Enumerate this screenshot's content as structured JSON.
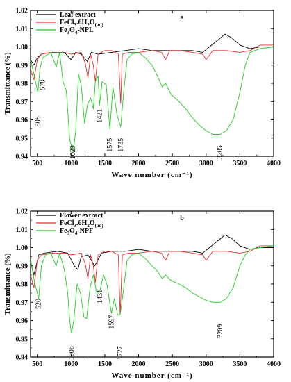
{
  "chart_data": [
    {
      "type": "line",
      "panel_label": "a",
      "xlabel": "Wave number (cm⁻¹)",
      "ylabel": "Transmittance (%)",
      "xlim": [
        400,
        4000
      ],
      "ylim": [
        0.94,
        1.02
      ],
      "xticks": [
        "500",
        "1000",
        "1500",
        "2000",
        "2500",
        "3000",
        "3500",
        "4000"
      ],
      "yticks": [
        "0.94",
        "0.95",
        "0.96",
        "0.97",
        "0.98",
        "0.99",
        "1.00",
        "1.01",
        "1.02"
      ],
      "legend_position": "top-left",
      "annotations": [
        {
          "label": "508",
          "x": 508,
          "y": 0.962
        },
        {
          "label": "578",
          "x": 578,
          "y": 0.982
        },
        {
          "label": "1029",
          "x": 1029,
          "y": 0.946
        },
        {
          "label": "1421",
          "x": 1421,
          "y": 0.966
        },
        {
          "label": "1575",
          "x": 1575,
          "y": 0.95
        },
        {
          "label": "1735",
          "x": 1735,
          "y": 0.95
        },
        {
          "label": "3205",
          "x": 3205,
          "y": 0.946
        }
      ],
      "series": [
        {
          "name": "Leaf extract",
          "color": "#000000",
          "points": [
            [
              400,
              0.993
            ],
            [
              450,
              0.99
            ],
            [
              500,
              0.994
            ],
            [
              560,
              0.996
            ],
            [
              700,
              0.997
            ],
            [
              900,
              0.997
            ],
            [
              1000,
              0.993
            ],
            [
              1070,
              0.997
            ],
            [
              1150,
              0.996
            ],
            [
              1240,
              0.992
            ],
            [
              1300,
              0.997
            ],
            [
              1400,
              0.996
            ],
            [
              1600,
              0.997
            ],
            [
              1800,
              0.998
            ],
            [
              2000,
              0.999
            ],
            [
              2200,
              0.998
            ],
            [
              2500,
              0.998
            ],
            [
              2800,
              0.998
            ],
            [
              2950,
              0.997
            ],
            [
              3050,
              1.0
            ],
            [
              3150,
              1.003
            ],
            [
              3280,
              1.007
            ],
            [
              3380,
              1.005
            ],
            [
              3500,
              1.001
            ],
            [
              3650,
              0.999
            ],
            [
              3800,
              1.0
            ],
            [
              4000,
              1.0
            ]
          ]
        },
        {
          "name": "FeCl3.6H2O(aq)",
          "color": "#e03030",
          "points": [
            [
              400,
              0.988
            ],
            [
              450,
              0.982
            ],
            [
              500,
              0.993
            ],
            [
              560,
              0.996
            ],
            [
              700,
              0.997
            ],
            [
              900,
              0.997
            ],
            [
              1000,
              0.996
            ],
            [
              1150,
              0.997
            ],
            [
              1210,
              0.991
            ],
            [
              1250,
              0.983
            ],
            [
              1290,
              0.996
            ],
            [
              1330,
              0.99
            ],
            [
              1360,
              0.981
            ],
            [
              1400,
              0.996
            ],
            [
              1500,
              0.998
            ],
            [
              1600,
              0.998
            ],
            [
              1700,
              0.996
            ],
            [
              1735,
              0.969
            ],
            [
              1760,
              0.996
            ],
            [
              1850,
              0.997
            ],
            [
              2000,
              0.997
            ],
            [
              2200,
              0.998
            ],
            [
              2340,
              0.997
            ],
            [
              2400,
              0.993
            ],
            [
              2460,
              0.998
            ],
            [
              2600,
              0.998
            ],
            [
              2800,
              0.997
            ],
            [
              2950,
              0.996
            ],
            [
              3000,
              0.993
            ],
            [
              3100,
              0.998
            ],
            [
              3300,
              0.998
            ],
            [
              3500,
              0.997
            ],
            [
              3650,
              0.998
            ],
            [
              3800,
              1.001
            ],
            [
              4000,
              1.001
            ]
          ]
        },
        {
          "name": "Fe3O4-NPL",
          "color": "#22cc22",
          "points": [
            [
              400,
              0.993
            ],
            [
              450,
              0.985
            ],
            [
              508,
              0.975
            ],
            [
              540,
              0.988
            ],
            [
              578,
              0.994
            ],
            [
              700,
              0.997
            ],
            [
              780,
              0.989
            ],
            [
              830,
              0.997
            ],
            [
              880,
              0.981
            ],
            [
              930,
              0.976
            ],
            [
              980,
              0.949
            ],
            [
              1029,
              0.942
            ],
            [
              1070,
              0.954
            ],
            [
              1110,
              0.985
            ],
            [
              1150,
              0.979
            ],
            [
              1200,
              0.958
            ],
            [
              1240,
              0.968
            ],
            [
              1290,
              0.972
            ],
            [
              1330,
              0.966
            ],
            [
              1360,
              0.981
            ],
            [
              1400,
              0.984
            ],
            [
              1421,
              0.968
            ],
            [
              1460,
              0.981
            ],
            [
              1520,
              0.979
            ],
            [
              1575,
              0.955
            ],
            [
              1620,
              0.978
            ],
            [
              1680,
              0.963
            ],
            [
              1735,
              0.956
            ],
            [
              1780,
              0.976
            ],
            [
              1830,
              0.993
            ],
            [
              1900,
              0.996
            ],
            [
              2000,
              0.997
            ],
            [
              2100,
              0.994
            ],
            [
              2200,
              0.99
            ],
            [
              2280,
              0.984
            ],
            [
              2350,
              0.978
            ],
            [
              2400,
              0.98
            ],
            [
              2480,
              0.974
            ],
            [
              2600,
              0.97
            ],
            [
              2700,
              0.966
            ],
            [
              2800,
              0.961
            ],
            [
              2900,
              0.957
            ],
            [
              3000,
              0.954
            ],
            [
              3100,
              0.952
            ],
            [
              3205,
              0.952
            ],
            [
              3300,
              0.954
            ],
            [
              3400,
              0.96
            ],
            [
              3500,
              0.975
            ],
            [
              3580,
              0.99
            ],
            [
              3650,
              0.997
            ],
            [
              3800,
              0.999
            ],
            [
              4000,
              1.0
            ]
          ]
        }
      ]
    },
    {
      "type": "line",
      "panel_label": "b",
      "xlabel": "Wave number (cm⁻¹)",
      "ylabel": "Transmittance (%)",
      "xlim": [
        400,
        4000
      ],
      "ylim": [
        0.94,
        1.02
      ],
      "xticks": [
        "500",
        "1000",
        "1500",
        "2000",
        "2500",
        "3000",
        "3500",
        "4000"
      ],
      "yticks": [
        "0.94",
        "0.95",
        "0.96",
        "0.97",
        "0.98",
        "0.99",
        "1.00",
        "1.01",
        "1.02"
      ],
      "legend_position": "top-left",
      "annotations": [
        {
          "label": "520",
          "x": 520,
          "y": 0.972
        },
        {
          "label": "1006",
          "x": 1006,
          "y": 0.946
        },
        {
          "label": "1431",
          "x": 1431,
          "y": 0.977
        },
        {
          "label": "1597",
          "x": 1597,
          "y": 0.963
        },
        {
          "label": "1727",
          "x": 1727,
          "y": 0.946
        },
        {
          "label": "3209",
          "x": 3209,
          "y": 0.958
        }
      ],
      "series": [
        {
          "name": "Flower extract",
          "color": "#000000",
          "points": [
            [
              400,
              0.992
            ],
            [
              450,
              0.985
            ],
            [
              520,
              0.996
            ],
            [
              600,
              0.997
            ],
            [
              800,
              0.998
            ],
            [
              950,
              0.997
            ],
            [
              1050,
              0.99
            ],
            [
              1100,
              0.988
            ],
            [
              1150,
              0.995
            ],
            [
              1250,
              0.996
            ],
            [
              1350,
              0.99
            ],
            [
              1450,
              0.997
            ],
            [
              1600,
              0.998
            ],
            [
              1800,
              0.998
            ],
            [
              2000,
              0.999
            ],
            [
              2200,
              0.998
            ],
            [
              2500,
              0.998
            ],
            [
              2800,
              0.998
            ],
            [
              2950,
              0.997
            ],
            [
              3050,
              1.0
            ],
            [
              3150,
              1.003
            ],
            [
              3280,
              1.007
            ],
            [
              3380,
              1.005
            ],
            [
              3500,
              1.001
            ],
            [
              3650,
              0.999
            ],
            [
              3800,
              1.0
            ],
            [
              4000,
              1.0
            ]
          ]
        },
        {
          "name": "FeCl3.6H2O(aq)",
          "color": "#e03030",
          "points": [
            [
              400,
              0.985
            ],
            [
              450,
              0.978
            ],
            [
              500,
              0.993
            ],
            [
              560,
              0.996
            ],
            [
              700,
              0.997
            ],
            [
              900,
              0.997
            ],
            [
              1000,
              0.996
            ],
            [
              1150,
              0.997
            ],
            [
              1210,
              0.991
            ],
            [
              1250,
              0.983
            ],
            [
              1290,
              0.996
            ],
            [
              1330,
              0.99
            ],
            [
              1360,
              0.981
            ],
            [
              1400,
              0.996
            ],
            [
              1500,
              0.998
            ],
            [
              1600,
              0.998
            ],
            [
              1700,
              0.996
            ],
            [
              1727,
              0.963
            ],
            [
              1760,
              0.996
            ],
            [
              1850,
              0.997
            ],
            [
              2000,
              0.997
            ],
            [
              2200,
              0.998
            ],
            [
              2340,
              0.997
            ],
            [
              2400,
              0.993
            ],
            [
              2460,
              0.998
            ],
            [
              2600,
              0.998
            ],
            [
              2800,
              0.997
            ],
            [
              2950,
              0.996
            ],
            [
              3000,
              0.993
            ],
            [
              3100,
              0.998
            ],
            [
              3300,
              0.998
            ],
            [
              3500,
              0.997
            ],
            [
              3650,
              0.998
            ],
            [
              3800,
              1.001
            ],
            [
              4000,
              1.001
            ]
          ]
        },
        {
          "name": "Fe3O4-NPF",
          "color": "#22cc22",
          "points": [
            [
              400,
              0.994
            ],
            [
              460,
              0.981
            ],
            [
              520,
              0.972
            ],
            [
              560,
              0.99
            ],
            [
              620,
              0.996
            ],
            [
              700,
              0.997
            ],
            [
              780,
              0.99
            ],
            [
              830,
              0.997
            ],
            [
              900,
              0.988
            ],
            [
              950,
              0.975
            ],
            [
              980,
              0.96
            ],
            [
              1006,
              0.953
            ],
            [
              1040,
              0.96
            ],
            [
              1090,
              0.98
            ],
            [
              1140,
              0.975
            ],
            [
              1190,
              0.962
            ],
            [
              1230,
              0.961
            ],
            [
              1280,
              0.978
            ],
            [
              1330,
              0.985
            ],
            [
              1380,
              0.975
            ],
            [
              1431,
              0.977
            ],
            [
              1480,
              0.985
            ],
            [
              1530,
              0.98
            ],
            [
              1597,
              0.964
            ],
            [
              1640,
              0.972
            ],
            [
              1690,
              0.963
            ],
            [
              1727,
              0.963
            ],
            [
              1770,
              0.975
            ],
            [
              1830,
              0.993
            ],
            [
              1900,
              0.996
            ],
            [
              2000,
              0.997
            ],
            [
              2100,
              0.994
            ],
            [
              2200,
              0.99
            ],
            [
              2280,
              0.987
            ],
            [
              2350,
              0.983
            ],
            [
              2400,
              0.985
            ],
            [
              2480,
              0.982
            ],
            [
              2600,
              0.98
            ],
            [
              2700,
              0.978
            ],
            [
              2800,
              0.975
            ],
            [
              2900,
              0.973
            ],
            [
              3000,
              0.971
            ],
            [
              3100,
              0.97
            ],
            [
              3209,
              0.97
            ],
            [
              3300,
              0.972
            ],
            [
              3400,
              0.978
            ],
            [
              3500,
              0.99
            ],
            [
              3580,
              0.996
            ],
            [
              3650,
              0.999
            ],
            [
              3800,
              1.0
            ],
            [
              4000,
              1.001
            ]
          ]
        }
      ]
    }
  ]
}
